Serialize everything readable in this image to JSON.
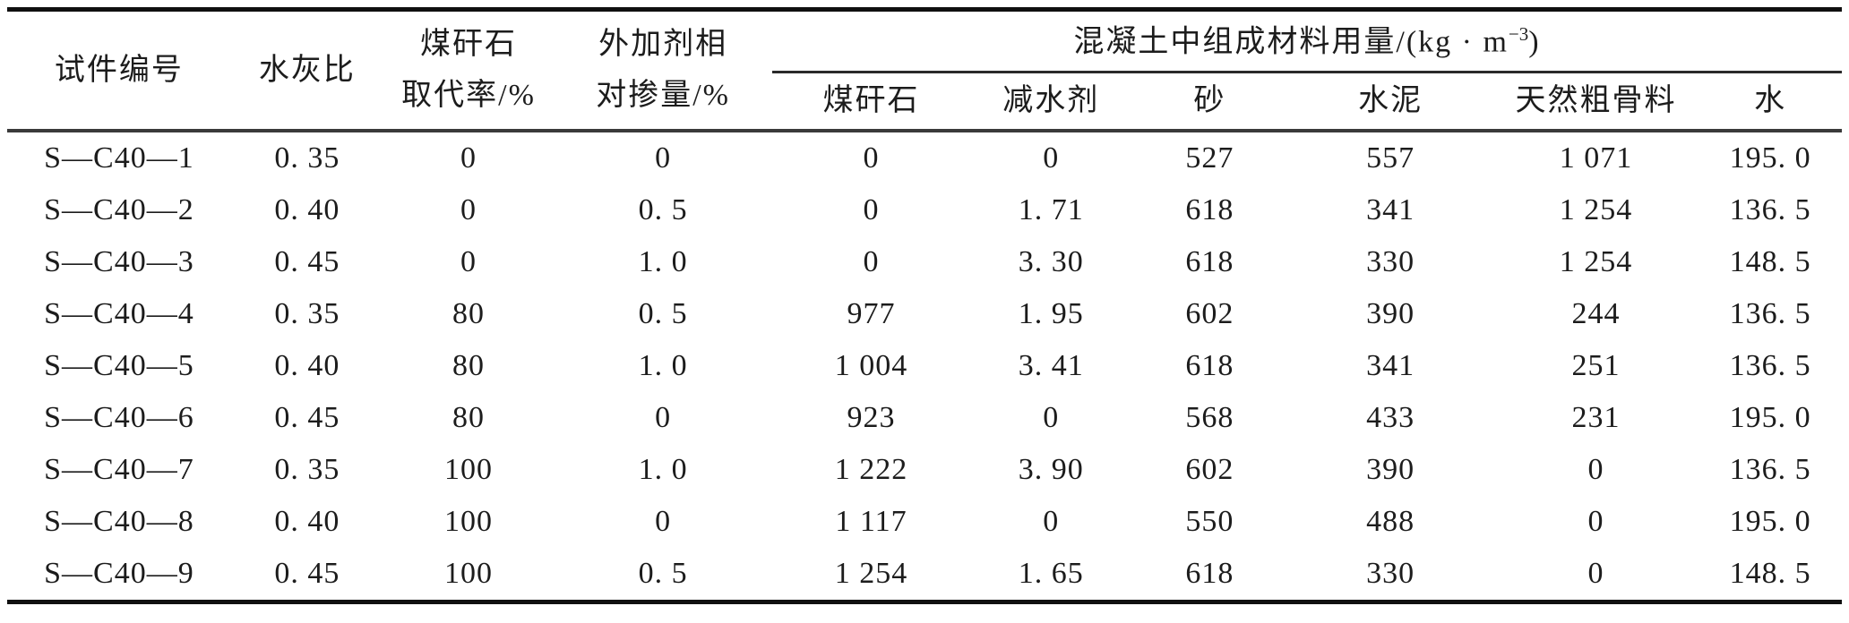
{
  "table": {
    "columns": {
      "specimen_id": "试件编号",
      "water_cement_ratio": "水灰比",
      "gangue_replacement_line1": "煤矸石",
      "gangue_replacement_line2": "取代率/%",
      "admixture_line1": "外加剂相",
      "admixture_line2": "对掺量/%",
      "group_pre": "混凝土中组成材料用量/(kg · m",
      "group_sup": "−3",
      "group_post": ")",
      "sub": [
        "煤矸石",
        "减水剂",
        "砂",
        "水泥",
        "天然粗骨料",
        "水"
      ]
    },
    "rows": [
      {
        "cells": [
          "S—C40—1",
          "0. 35",
          "0",
          "0",
          "0",
          "0",
          "527",
          "557",
          "1 071",
          "195. 0"
        ]
      },
      {
        "cells": [
          "S—C40—2",
          "0. 40",
          "0",
          "0. 5",
          "0",
          "1. 71",
          "618",
          "341",
          "1 254",
          "136. 5"
        ]
      },
      {
        "cells": [
          "S—C40—3",
          "0. 45",
          "0",
          "1. 0",
          "0",
          "3. 30",
          "618",
          "330",
          "1 254",
          "148. 5"
        ]
      },
      {
        "cells": [
          "S—C40—4",
          "0. 35",
          "80",
          "0. 5",
          "977",
          "1. 95",
          "602",
          "390",
          "244",
          "136. 5"
        ]
      },
      {
        "cells": [
          "S—C40—5",
          "0. 40",
          "80",
          "1. 0",
          "1 004",
          "3. 41",
          "618",
          "341",
          "251",
          "136. 5"
        ]
      },
      {
        "cells": [
          "S—C40—6",
          "0. 45",
          "80",
          "0",
          "923",
          "0",
          "568",
          "433",
          "231",
          "195. 0"
        ]
      },
      {
        "cells": [
          "S—C40—7",
          "0. 35",
          "100",
          "1. 0",
          "1 222",
          "3. 90",
          "602",
          "390",
          "0",
          "136. 5"
        ]
      },
      {
        "cells": [
          "S—C40—8",
          "0. 40",
          "100",
          "0",
          "1 117",
          "0",
          "550",
          "488",
          "0",
          "195. 0"
        ]
      },
      {
        "cells": [
          "S—C40—9",
          "0. 45",
          "100",
          "0. 5",
          "1 254",
          "1. 65",
          "618",
          "330",
          "0",
          "148. 5"
        ]
      }
    ]
  }
}
